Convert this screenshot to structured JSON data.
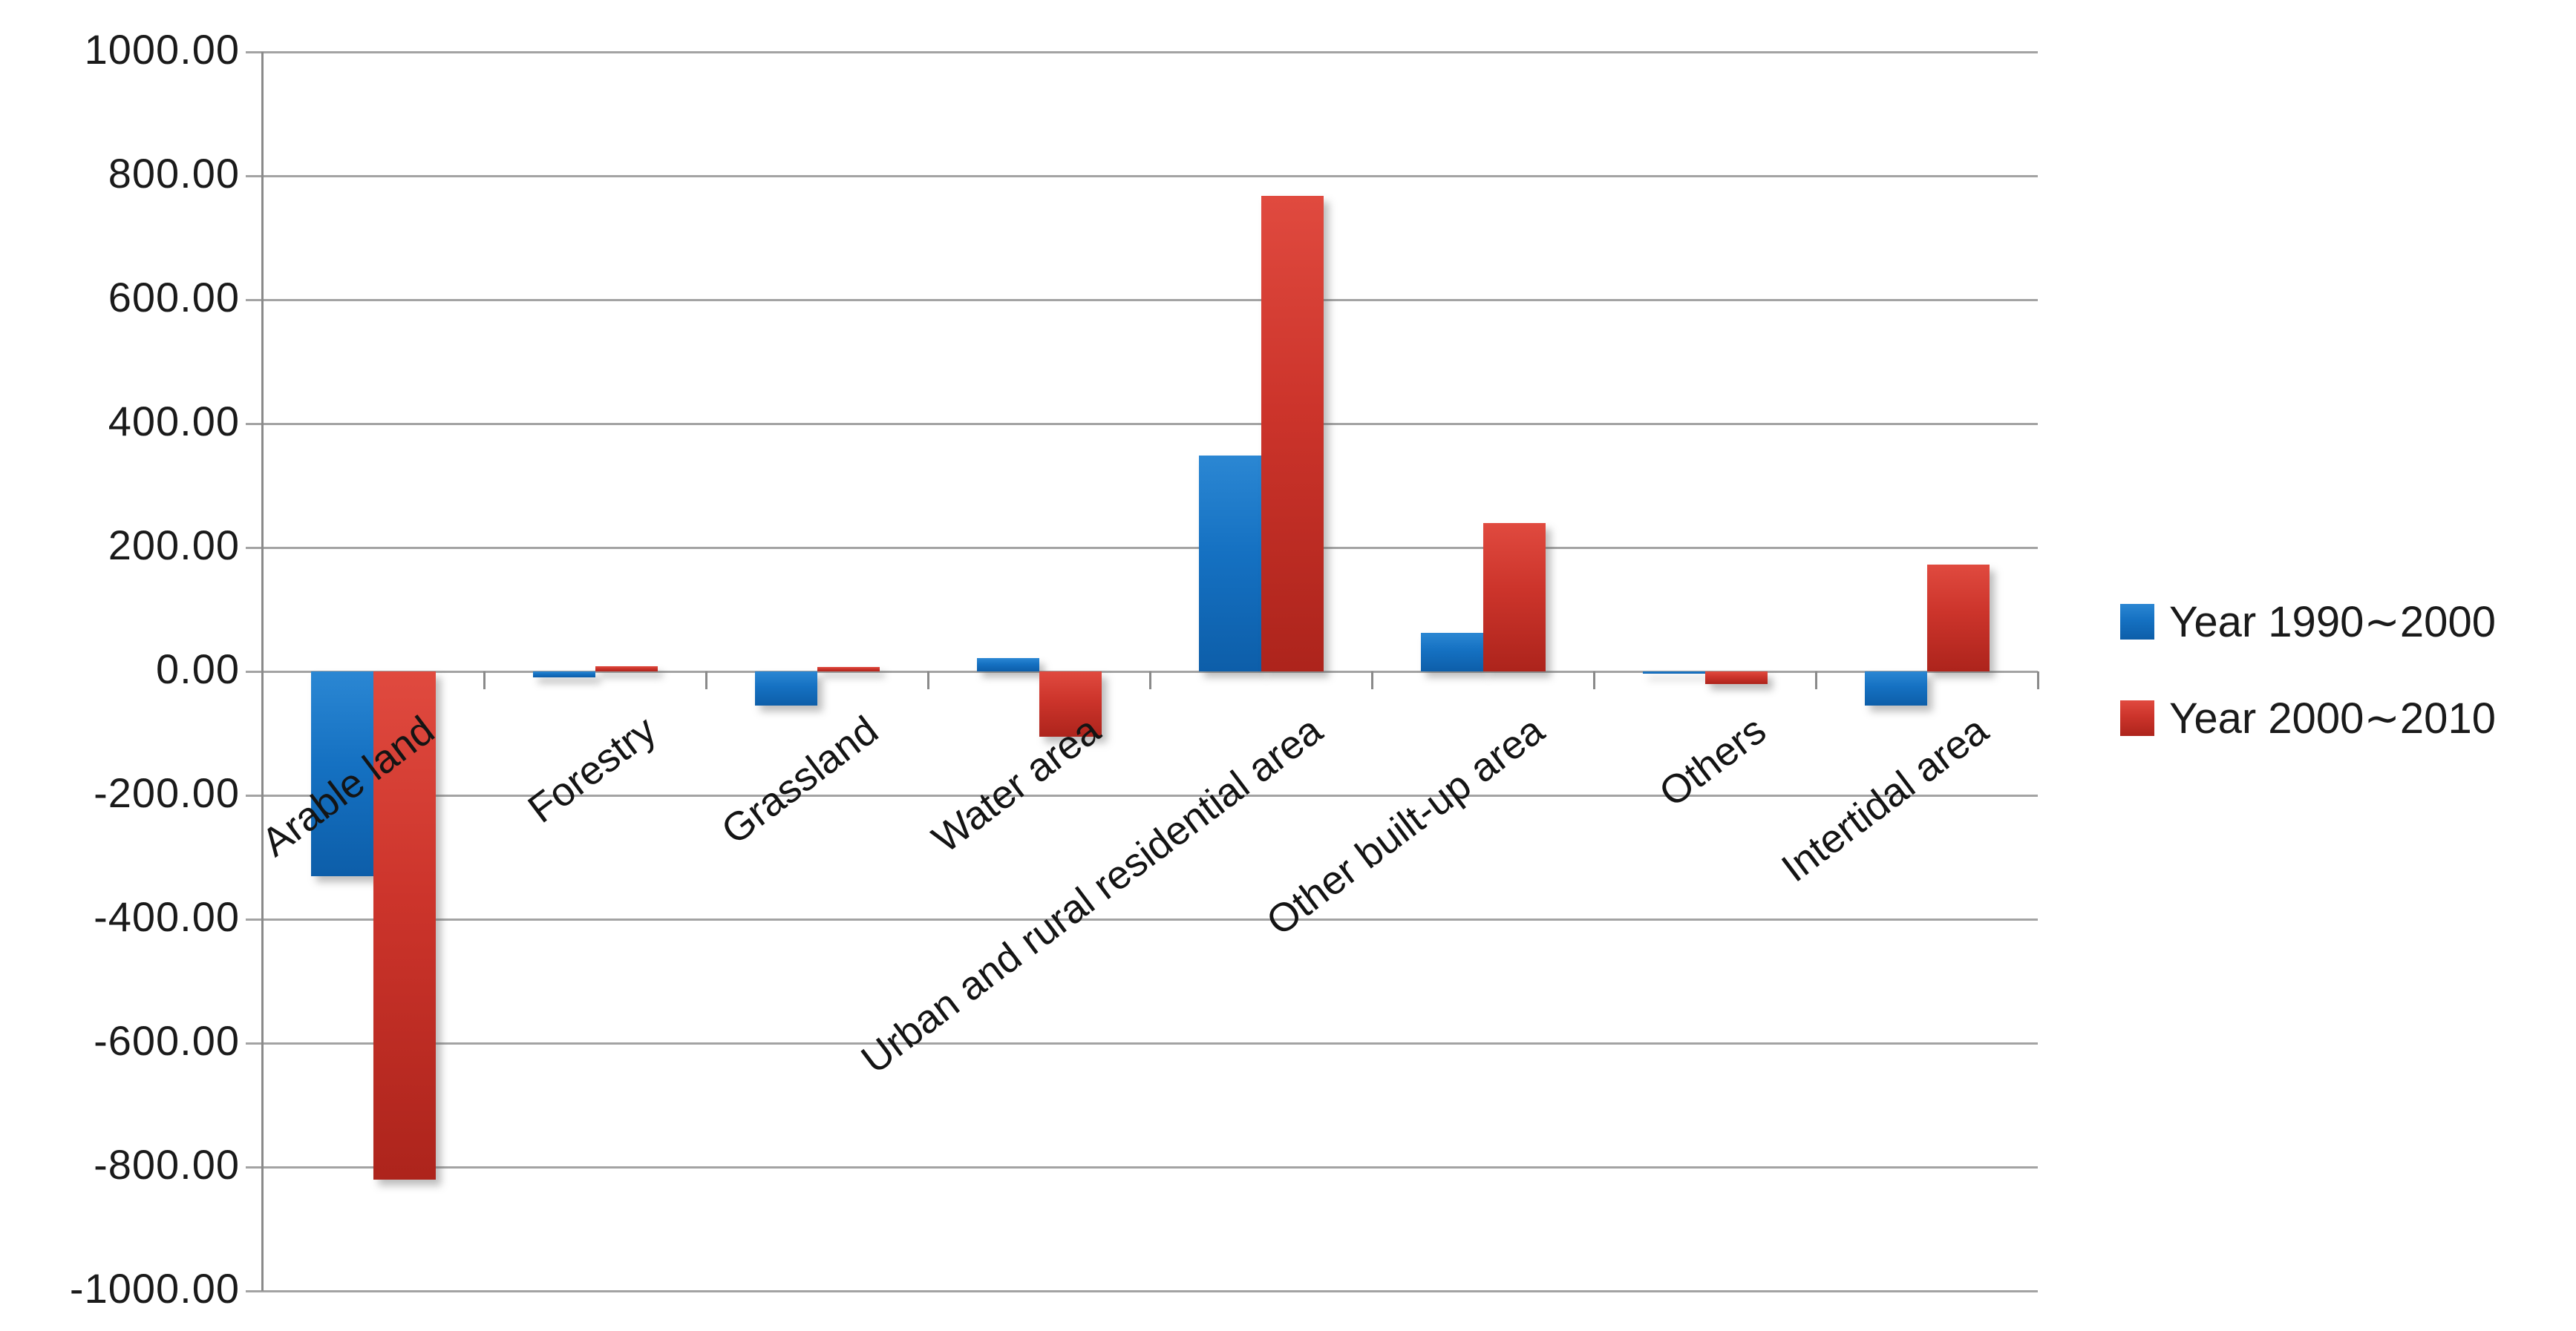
{
  "chart_data": {
    "type": "bar",
    "title": "",
    "xlabel": "",
    "ylabel": "",
    "categories": [
      "Arable land",
      "Forestry",
      "Grassland",
      "Water area",
      "Urban and rural residential area",
      "Other built-up area",
      "Others",
      "Intertidal area"
    ],
    "series": [
      {
        "name": "Year 1990∼2000",
        "color": "#1571C2",
        "values": [
          -330,
          -10,
          -55,
          22,
          348,
          62,
          -4,
          -55
        ]
      },
      {
        "name": "Year 2000∼2010",
        "color": "#CC342B",
        "values": [
          -820,
          8,
          7,
          -105,
          768,
          240,
          -20,
          173
        ]
      }
    ],
    "ylim": [
      -1000,
      1000
    ],
    "ytick_step": 200,
    "ytick_labels": [
      "1000.00",
      "800.00",
      "600.00",
      "400.00",
      "200.00",
      "0.00",
      "-200.00",
      "-400.00",
      "-600.00",
      "-800.00",
      "-1000.00"
    ],
    "grid": true,
    "legend_position": "right",
    "style": {
      "gridline_color": "#A3A3A3",
      "axis_color": "#8A8A8A",
      "text_color": "#1A1A1A",
      "background_color": "#FFFFFF"
    }
  }
}
